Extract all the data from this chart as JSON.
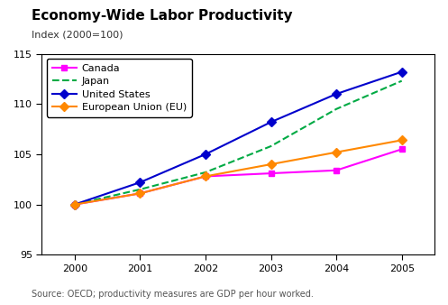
{
  "title": "Economy-Wide Labor Productivity",
  "subtitle": "Index (2000=100)",
  "source": "Source: OECD; productivity measures are GDP per hour worked.",
  "years": [
    2000,
    2001,
    2002,
    2003,
    2004,
    2005
  ],
  "series": {
    "Canada": {
      "values": [
        100.0,
        101.1,
        102.8,
        103.1,
        103.4,
        105.5
      ],
      "color": "#ff00ff",
      "linestyle": "-",
      "marker": "s",
      "markersize": 5,
      "linewidth": 1.5
    },
    "Japan": {
      "values": [
        100.0,
        101.5,
        103.2,
        105.8,
        109.5,
        112.3
      ],
      "color": "#00aa44",
      "linestyle": "--",
      "marker": null,
      "markersize": 0,
      "linewidth": 1.5
    },
    "United States": {
      "values": [
        100.0,
        102.2,
        105.0,
        108.2,
        111.0,
        113.2
      ],
      "color": "#0000cc",
      "linestyle": "-",
      "marker": "D",
      "markersize": 5,
      "linewidth": 1.5
    },
    "European Union (EU)": {
      "values": [
        100.0,
        101.1,
        102.8,
        104.0,
        105.2,
        106.4
      ],
      "color": "#ff8800",
      "linestyle": "-",
      "marker": "D",
      "markersize": 5,
      "linewidth": 1.5
    }
  },
  "ylim": [
    95,
    115
  ],
  "yticks": [
    95,
    100,
    105,
    110,
    115
  ],
  "xlim": [
    1999.5,
    2005.5
  ],
  "xticks": [
    2000,
    2001,
    2002,
    2003,
    2004,
    2005
  ],
  "background_color": "#ffffff",
  "legend_order": [
    "Canada",
    "Japan",
    "United States",
    "European Union (EU)"
  ]
}
